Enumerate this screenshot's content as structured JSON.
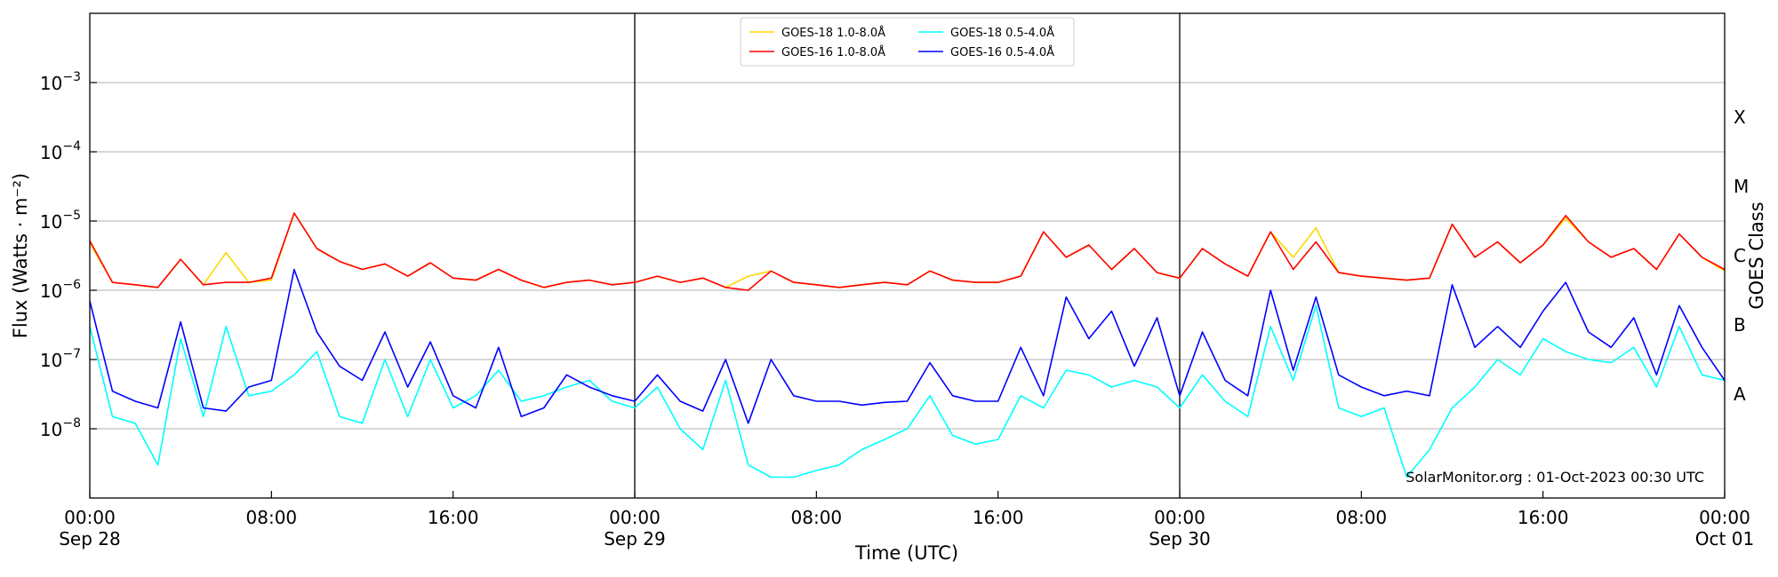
{
  "chart_data": {
    "type": "line",
    "xlabel": "Time (UTC)",
    "ylabel": "Flux (Watts · m⁻²)",
    "y2label": "GOES Class",
    "annotation": "SolarMonitor.org : 01-Oct-2023 00:30 UTC",
    "log_y": true,
    "grid": true,
    "day_lines": true,
    "legend": "upper center",
    "legend_columns": 2,
    "xlim": [
      "Sep 28 00:00",
      "Oct 01 00:00"
    ],
    "xticks": [
      {
        "value": "Sep 28 00:00",
        "label": [
          "00:00",
          "Sep 28"
        ]
      },
      {
        "value": "Sep 28 08:00",
        "label": [
          "08:00"
        ]
      },
      {
        "value": "Sep 28 16:00",
        "label": [
          "16:00"
        ]
      },
      {
        "value": "Sep 29 00:00",
        "label": [
          "00:00",
          "Sep 29"
        ]
      },
      {
        "value": "Sep 29 08:00",
        "label": [
          "08:00"
        ]
      },
      {
        "value": "Sep 29 16:00",
        "label": [
          "16:00"
        ]
      },
      {
        "value": "Sep 30 00:00",
        "label": [
          "00:00",
          "Sep 30"
        ]
      },
      {
        "value": "Sep 30 08:00",
        "label": [
          "08:00"
        ]
      },
      {
        "value": "Sep 30 16:00",
        "label": [
          "16:00"
        ]
      },
      {
        "value": "Oct 01 00:00",
        "label": [
          "00:00",
          "Oct 01"
        ]
      }
    ],
    "ylim": [
      1e-09,
      0.01
    ],
    "yticks": [
      {
        "value": 1e-08,
        "label": [
          "10",
          "−8"
        ]
      },
      {
        "value": 1e-07,
        "label": [
          "10",
          "−7"
        ]
      },
      {
        "value": 1e-06,
        "label": [
          "10",
          "−6"
        ]
      },
      {
        "value": 1e-05,
        "label": [
          "10",
          "−5"
        ]
      },
      {
        "value": 0.0001,
        "label": [
          "10",
          "−4"
        ]
      },
      {
        "value": 0.001,
        "label": [
          "10",
          "−3"
        ]
      }
    ],
    "y2lim": [
      1e-09,
      0.01
    ],
    "y2ticks": [
      {
        "value": 3.16e-08,
        "label": "A"
      },
      {
        "value": 3.16e-07,
        "label": "B"
      },
      {
        "value": 3.16e-06,
        "label": "C"
      },
      {
        "value": 3.16e-05,
        "label": "M"
      },
      {
        "value": 0.000316,
        "label": "X"
      }
    ],
    "x": [
      "Sep 28 00:00",
      "Sep 28 01:00",
      "Sep 28 02:00",
      "Sep 28 03:00",
      "Sep 28 04:00",
      "Sep 28 05:00",
      "Sep 28 06:00",
      "Sep 28 07:00",
      "Sep 28 08:00",
      "Sep 28 09:00",
      "Sep 28 10:00",
      "Sep 28 11:00",
      "Sep 28 12:00",
      "Sep 28 13:00",
      "Sep 28 14:00",
      "Sep 28 15:00",
      "Sep 28 16:00",
      "Sep 28 17:00",
      "Sep 28 18:00",
      "Sep 28 19:00",
      "Sep 28 20:00",
      "Sep 28 21:00",
      "Sep 28 22:00",
      "Sep 28 23:00",
      "Sep 29 00:00",
      "Sep 29 01:00",
      "Sep 29 02:00",
      "Sep 29 03:00",
      "Sep 29 04:00",
      "Sep 29 05:00",
      "Sep 29 06:00",
      "Sep 29 07:00",
      "Sep 29 08:00",
      "Sep 29 09:00",
      "Sep 29 10:00",
      "Sep 29 11:00",
      "Sep 29 12:00",
      "Sep 29 13:00",
      "Sep 29 14:00",
      "Sep 29 15:00",
      "Sep 29 16:00",
      "Sep 29 17:00",
      "Sep 29 18:00",
      "Sep 29 19:00",
      "Sep 29 20:00",
      "Sep 29 21:00",
      "Sep 29 22:00",
      "Sep 29 23:00",
      "Sep 30 00:00",
      "Sep 30 01:00",
      "Sep 30 02:00",
      "Sep 30 03:00",
      "Sep 30 04:00",
      "Sep 30 05:00",
      "Sep 30 06:00",
      "Sep 30 07:00",
      "Sep 30 08:00",
      "Sep 30 09:00",
      "Sep 30 10:00",
      "Sep 30 11:00",
      "Sep 30 12:00",
      "Sep 30 13:00",
      "Sep 30 14:00",
      "Sep 30 15:00",
      "Sep 30 16:00",
      "Sep 30 17:00",
      "Sep 30 18:00",
      "Sep 30 19:00",
      "Sep 30 20:00",
      "Sep 30 21:00",
      "Sep 30 22:00",
      "Sep 30 23:00",
      "Oct 01 00:00"
    ],
    "series": [
      {
        "name": "GOES-18 1.0-8.0Å",
        "color": "#ffd700",
        "values": [
          4.8e-06,
          1.3e-06,
          1.2e-06,
          1.1e-06,
          2.8e-06,
          1.2e-06,
          3.5e-06,
          1.3e-06,
          1.4e-06,
          1.3e-05,
          4e-06,
          2.6e-06,
          2e-06,
          2.4e-06,
          1.6e-06,
          2.5e-06,
          1.5e-06,
          1.4e-06,
          2e-06,
          1.4e-06,
          1.1e-06,
          1.3e-06,
          1.4e-06,
          1.2e-06,
          1.3e-06,
          1.6e-06,
          1.3e-06,
          1.5e-06,
          1.1e-06,
          1.6e-06,
          1.9e-06,
          1.3e-06,
          1.2e-06,
          1.1e-06,
          1.2e-06,
          1.3e-06,
          1.2e-06,
          1.9e-06,
          1.4e-06,
          1.3e-06,
          1.3e-06,
          1.6e-06,
          7e-06,
          3e-06,
          4.5e-06,
          2e-06,
          4e-06,
          1.8e-06,
          1.5e-06,
          4e-06,
          2.4e-06,
          1.6e-06,
          7e-06,
          3e-06,
          8e-06,
          1.8e-06,
          1.6e-06,
          1.5e-06,
          1.4e-06,
          1.5e-06,
          9e-06,
          3e-06,
          5e-06,
          2.5e-06,
          4.5e-06,
          1.1e-05,
          5e-06,
          3e-06,
          4e-06,
          2e-06,
          6.5e-06,
          3e-06,
          1.9e-06
        ]
      },
      {
        "name": "GOES-16 1.0-8.0Å",
        "color": "#ff0000",
        "values": [
          5.2e-06,
          1.3e-06,
          1.2e-06,
          1.1e-06,
          2.8e-06,
          1.2e-06,
          1.3e-06,
          1.3e-06,
          1.5e-06,
          1.3e-05,
          4e-06,
          2.6e-06,
          2e-06,
          2.4e-06,
          1.6e-06,
          2.5e-06,
          1.5e-06,
          1.4e-06,
          2e-06,
          1.4e-06,
          1.1e-06,
          1.3e-06,
          1.4e-06,
          1.2e-06,
          1.3e-06,
          1.6e-06,
          1.3e-06,
          1.5e-06,
          1.1e-06,
          1e-06,
          1.9e-06,
          1.3e-06,
          1.2e-06,
          1.1e-06,
          1.2e-06,
          1.3e-06,
          1.2e-06,
          1.9e-06,
          1.4e-06,
          1.3e-06,
          1.3e-06,
          1.6e-06,
          7e-06,
          3e-06,
          4.5e-06,
          2e-06,
          4e-06,
          1.8e-06,
          1.5e-06,
          4e-06,
          2.4e-06,
          1.6e-06,
          7e-06,
          2e-06,
          5e-06,
          1.8e-06,
          1.6e-06,
          1.5e-06,
          1.4e-06,
          1.5e-06,
          9e-06,
          3e-06,
          5e-06,
          2.5e-06,
          4.5e-06,
          1.2e-05,
          5e-06,
          3e-06,
          4e-06,
          2e-06,
          6.5e-06,
          3e-06,
          2e-06
        ]
      },
      {
        "name": "GOES-18 0.5-4.0Å",
        "color": "#00ffff",
        "values": [
          3e-07,
          1.5e-08,
          1.2e-08,
          3e-09,
          2e-07,
          1.5e-08,
          3e-07,
          3e-08,
          3.5e-08,
          6e-08,
          1.3e-07,
          1.5e-08,
          1.2e-08,
          1e-07,
          1.5e-08,
          1e-07,
          2e-08,
          3e-08,
          7e-08,
          2.5e-08,
          3e-08,
          4e-08,
          5e-08,
          2.5e-08,
          2e-08,
          4e-08,
          1e-08,
          5e-09,
          5e-08,
          3e-09,
          2e-09,
          2e-09,
          2.5e-09,
          3e-09,
          5e-09,
          7e-09,
          1e-08,
          3e-08,
          8e-09,
          6e-09,
          7e-09,
          3e-08,
          2e-08,
          7e-08,
          6e-08,
          4e-08,
          5e-08,
          4e-08,
          2e-08,
          6e-08,
          2.5e-08,
          1.5e-08,
          3e-07,
          5e-08,
          6e-07,
          2e-08,
          1.5e-08,
          2e-08,
          2e-09,
          5e-09,
          2e-08,
          4e-08,
          1e-07,
          6e-08,
          2e-07,
          1.3e-07,
          1e-07,
          9e-08,
          1.5e-07,
          4e-08,
          3e-07,
          6e-08,
          5e-08
        ]
      },
      {
        "name": "GOES-16 0.5-4.0Å",
        "color": "#0000ff",
        "values": [
          7e-07,
          3.5e-08,
          2.5e-08,
          2e-08,
          3.5e-07,
          2e-08,
          1.8e-08,
          4e-08,
          5e-08,
          2e-06,
          2.5e-07,
          8e-08,
          5e-08,
          2.5e-07,
          4e-08,
          1.8e-07,
          3e-08,
          2e-08,
          1.5e-07,
          1.5e-08,
          2e-08,
          6e-08,
          4e-08,
          3e-08,
          2.5e-08,
          6e-08,
          2.5e-08,
          1.8e-08,
          1e-07,
          1.2e-08,
          1e-07,
          3e-08,
          2.5e-08,
          2.5e-08,
          2.2e-08,
          2.4e-08,
          2.5e-08,
          9e-08,
          3e-08,
          2.5e-08,
          2.5e-08,
          1.5e-07,
          3e-08,
          8e-07,
          2e-07,
          5e-07,
          8e-08,
          4e-07,
          3e-08,
          2.5e-07,
          5e-08,
          3e-08,
          1e-06,
          7e-08,
          8e-07,
          6e-08,
          4e-08,
          3e-08,
          3.5e-08,
          3e-08,
          1.2e-06,
          1.5e-07,
          3e-07,
          1.5e-07,
          5e-07,
          1.3e-06,
          2.5e-07,
          1.5e-07,
          4e-07,
          6e-08,
          6e-07,
          1.5e-07,
          5e-08
        ]
      }
    ]
  }
}
